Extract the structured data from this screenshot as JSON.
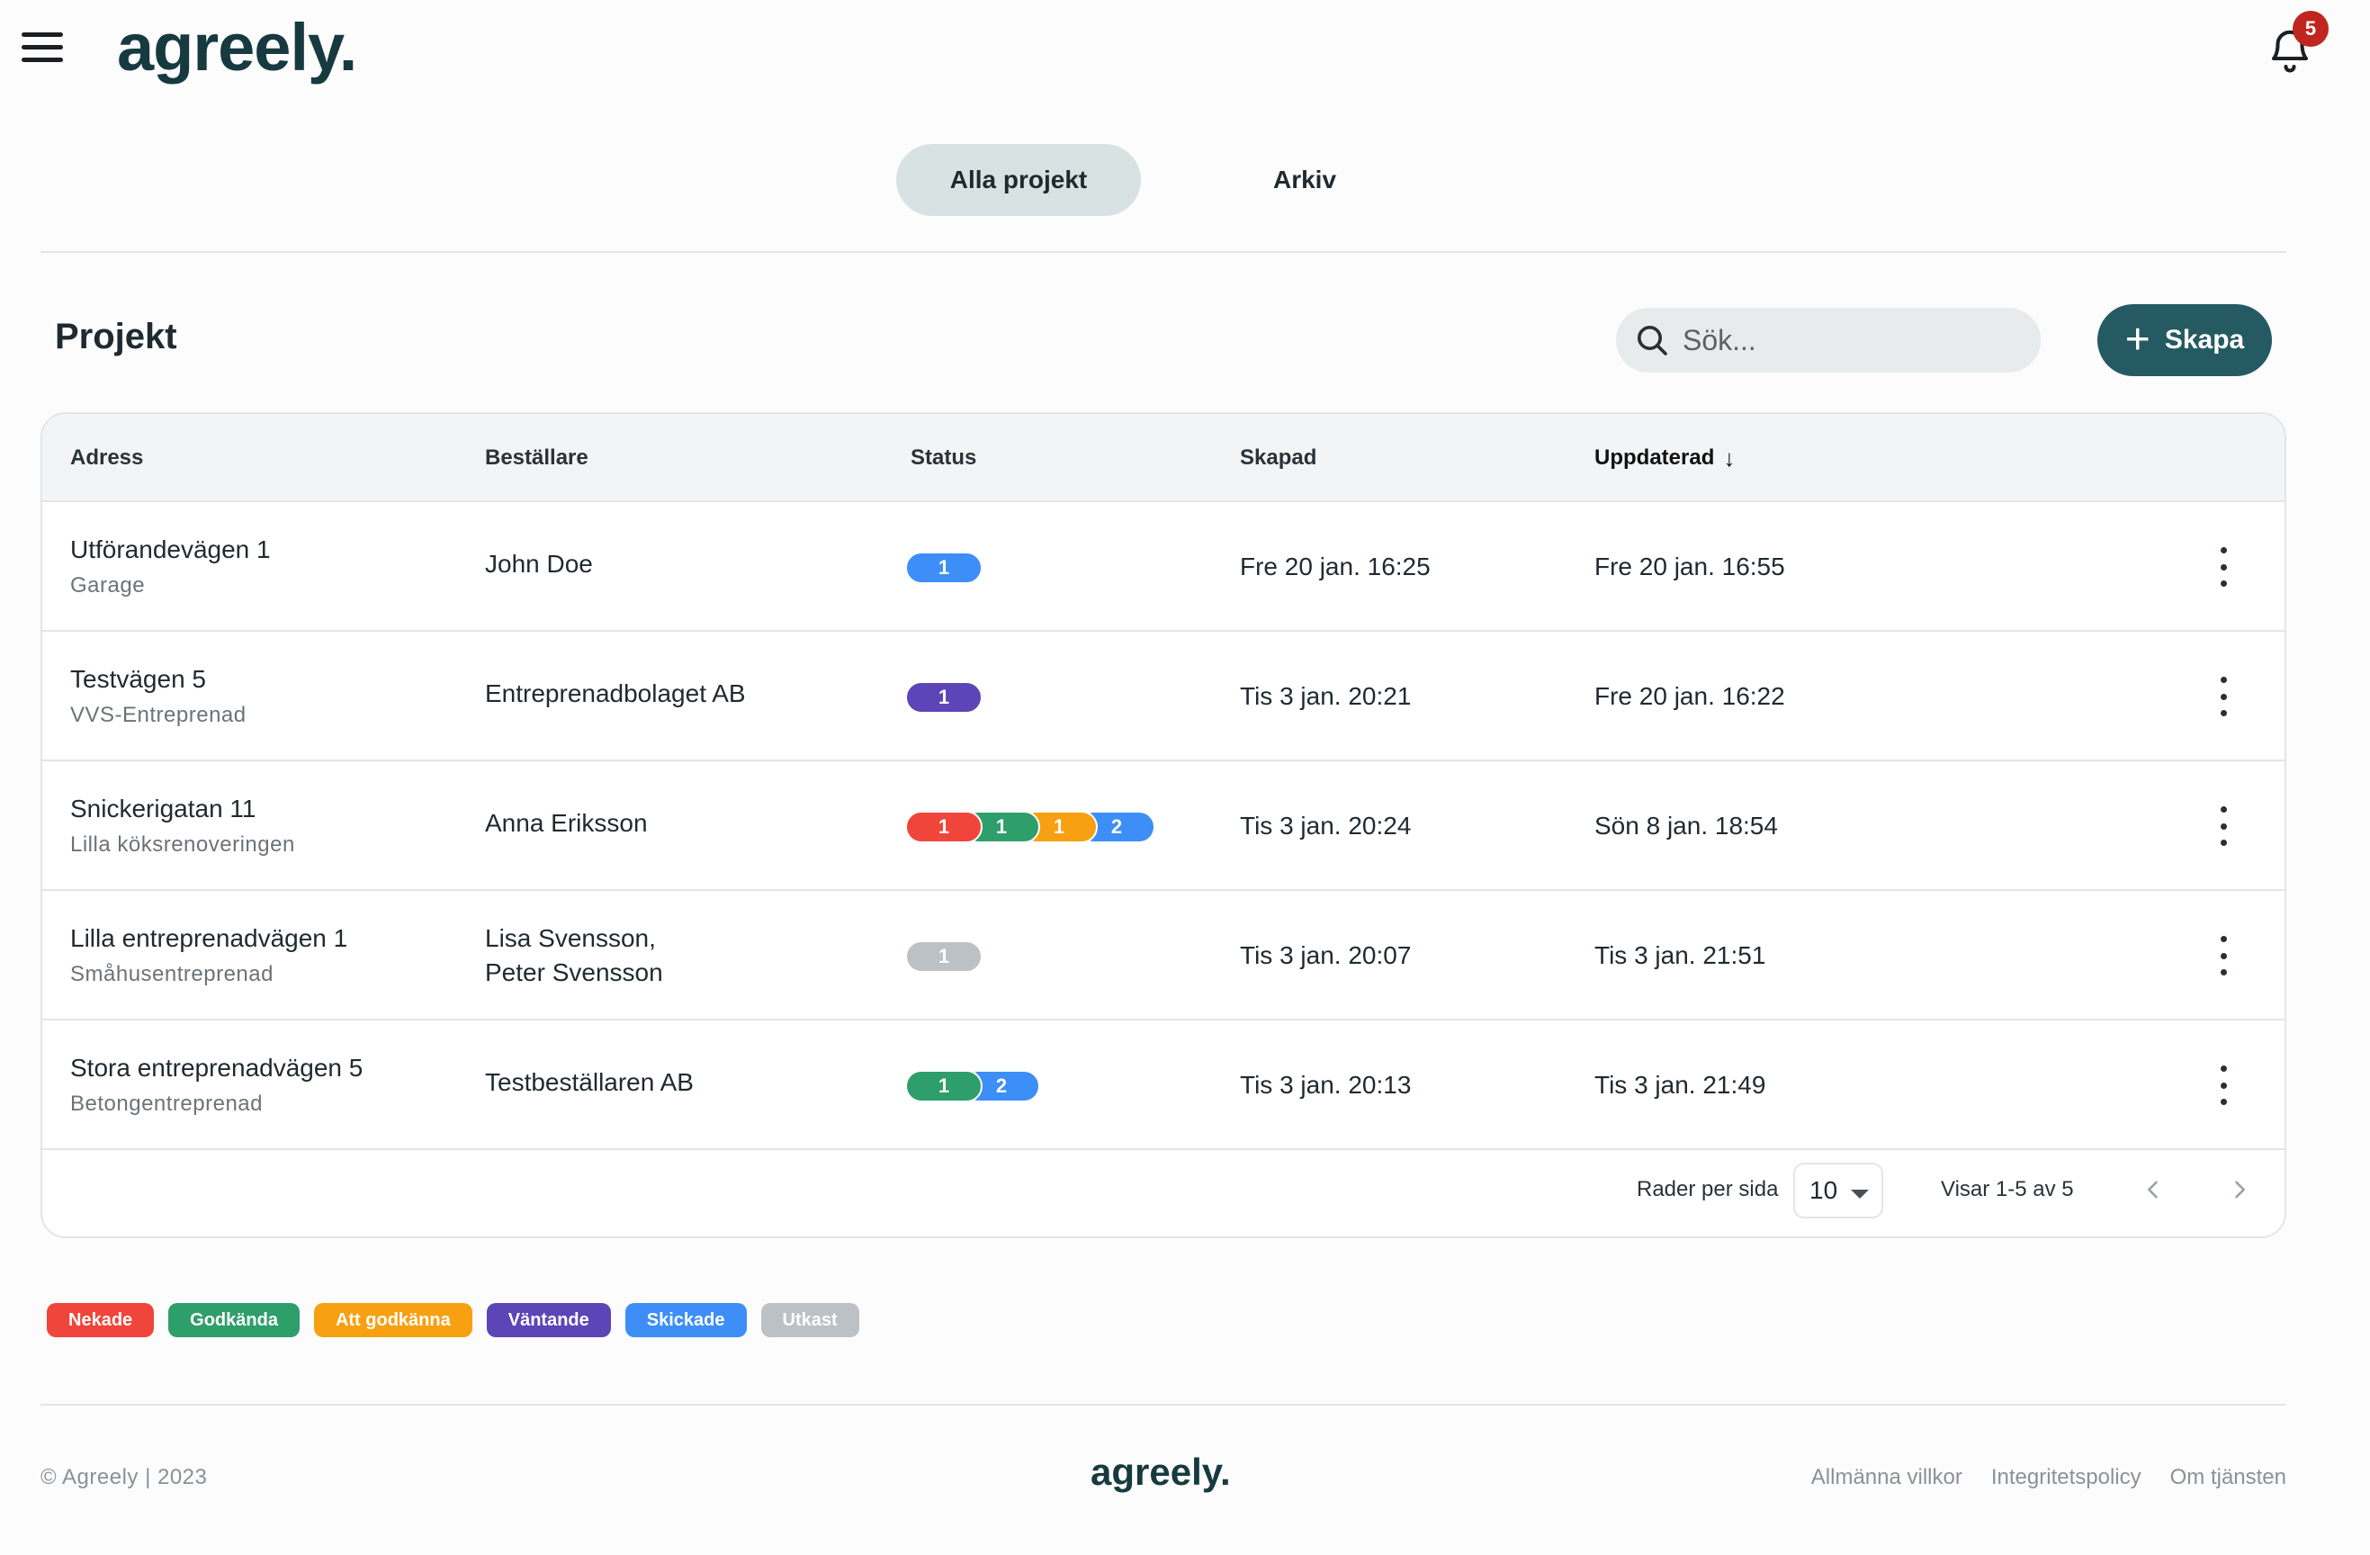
{
  "header": {
    "logo": "agreely.",
    "notification_count": "5"
  },
  "tabs": [
    {
      "label": "Alla projekt"
    },
    {
      "label": "Arkiv"
    }
  ],
  "section": {
    "title": "Projekt",
    "search_placeholder": "Sök...",
    "create_label": "Skapa"
  },
  "table": {
    "headers": {
      "address": "Adress",
      "client": "Beställare",
      "status": "Status",
      "created": "Skapad",
      "updated": "Uppdaterad"
    },
    "rows": [
      {
        "address": "Utförandevägen 1",
        "subtitle": "Garage",
        "client": "John Doe",
        "client2": "",
        "created": "Fre 20 jan. 16:25",
        "updated": "Fre 20 jan. 16:55",
        "statuses": [
          {
            "count": "1",
            "color": "#3d8ef7"
          }
        ]
      },
      {
        "address": "Testvägen 5",
        "subtitle": "VVS-Entreprenad",
        "client": "Entreprenadbolaget AB",
        "client2": "",
        "created": "Tis 3 jan. 20:21",
        "updated": "Fre 20 jan. 16:22",
        "statuses": [
          {
            "count": "1",
            "color": "#5c45b6"
          }
        ]
      },
      {
        "address": "Snickerigatan 11",
        "subtitle": "Lilla köksrenoveringen",
        "client": "Anna Eriksson",
        "client2": "",
        "created": "Tis 3 jan. 20:24",
        "updated": "Sön 8 jan. 18:54",
        "statuses": [
          {
            "count": "1",
            "color": "#f0453a"
          },
          {
            "count": "1",
            "color": "#2e9e6a"
          },
          {
            "count": "1",
            "color": "#f7a012"
          },
          {
            "count": "2",
            "color": "#3d8ef7"
          }
        ]
      },
      {
        "address": "Lilla entreprenadvägen 1",
        "subtitle": "Småhusentreprenad",
        "client": "Lisa Svensson,",
        "client2": "Peter Svensson",
        "created": "Tis 3 jan. 20:07",
        "updated": "Tis 3 jan. 21:51",
        "statuses": [
          {
            "count": "1",
            "color": "#bcc1c6"
          }
        ]
      },
      {
        "address": "Stora entreprenadvägen 5",
        "subtitle": "Betongentreprenad",
        "client": "Testbeställaren AB",
        "client2": "",
        "created": "Tis 3 jan. 20:13",
        "updated": "Tis 3 jan. 21:49",
        "statuses": [
          {
            "count": "1",
            "color": "#2e9e6a"
          },
          {
            "count": "2",
            "color": "#3d8ef7"
          }
        ]
      }
    ],
    "pagination": {
      "rows_per_page_label": "Rader per sida",
      "rows_per_page_value": "10",
      "range_label": "Visar 1-5 av 5"
    }
  },
  "legend": [
    {
      "label": "Nekade",
      "color": "#f0453a"
    },
    {
      "label": "Godkända",
      "color": "#2e9e6a"
    },
    {
      "label": "Att godkänna",
      "color": "#f7a012"
    },
    {
      "label": "Väntande",
      "color": "#5c45b6"
    },
    {
      "label": "Skickade",
      "color": "#3d8ef7"
    },
    {
      "label": "Utkast",
      "color": "#bcc1c6"
    }
  ],
  "footer": {
    "copyright": "©  Agreely  | 2023",
    "logo": "agreely.",
    "links": [
      "Allmänna villkor",
      "Integritetspolicy",
      "Om tjänsten"
    ]
  }
}
